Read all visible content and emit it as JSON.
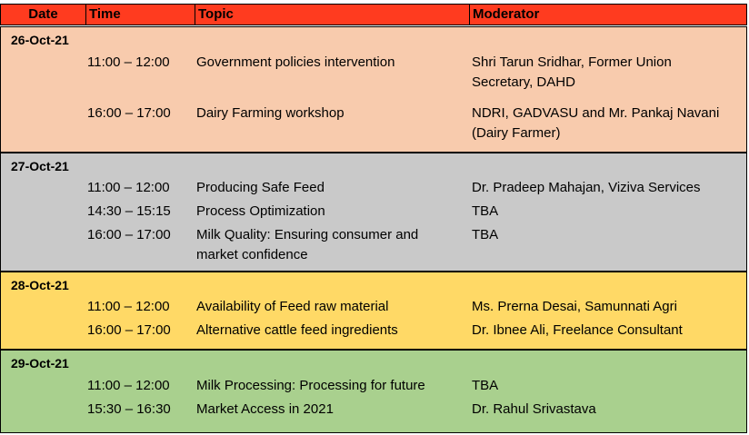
{
  "columns": {
    "date": "Date",
    "time": "Time",
    "topic": "Topic",
    "moderator": "Moderator"
  },
  "colors": {
    "header": "#ff3b1f",
    "day1": "#f8cbad",
    "day2": "#c9c9c9",
    "day3": "#ffd966",
    "day4": "#a9d08e"
  },
  "days": [
    {
      "date": "26-Oct-21",
      "sessions": [
        {
          "time": "11:00 – 12:00",
          "topic": "Government policies intervention",
          "moderator": "Shri Tarun Sridhar, Former Union Secretary, DAHD"
        },
        {
          "time": "16:00 – 17:00",
          "topic": "Dairy Farming workshop",
          "moderator": "NDRI, GADVASU and Mr. Pankaj Navani (Dairy Farmer)"
        }
      ]
    },
    {
      "date": "27-Oct-21",
      "sessions": [
        {
          "time": "11:00 – 12:00",
          "topic": "Producing Safe Feed",
          "moderator": "Dr. Pradeep Mahajan, Viziva Services"
        },
        {
          "time": "14:30 – 15:15",
          "topic": "Process Optimization",
          "moderator": "TBA"
        },
        {
          "time": "16:00 – 17:00",
          "topic": "Milk Quality: Ensuring consumer and market confidence",
          "moderator": "TBA"
        }
      ]
    },
    {
      "date": "28-Oct-21",
      "sessions": [
        {
          "time": "11:00 – 12:00",
          "topic": "Availability of Feed raw material",
          "moderator": "Ms. Prerna Desai, Samunnati Agri"
        },
        {
          "time": "16:00 – 17:00",
          "topic": "Alternative cattle feed ingredients",
          "moderator": "Dr. Ibnee Ali, Freelance Consultant"
        }
      ]
    },
    {
      "date": "29-Oct-21",
      "sessions": [
        {
          "time": "11:00 – 12:00",
          "topic": "Milk Processing: Processing for future",
          "moderator": "TBA"
        },
        {
          "time": "15:30 – 16:30",
          "topic": "Market Access in 2021",
          "moderator": "Dr. Rahul Srivastava"
        }
      ]
    }
  ]
}
